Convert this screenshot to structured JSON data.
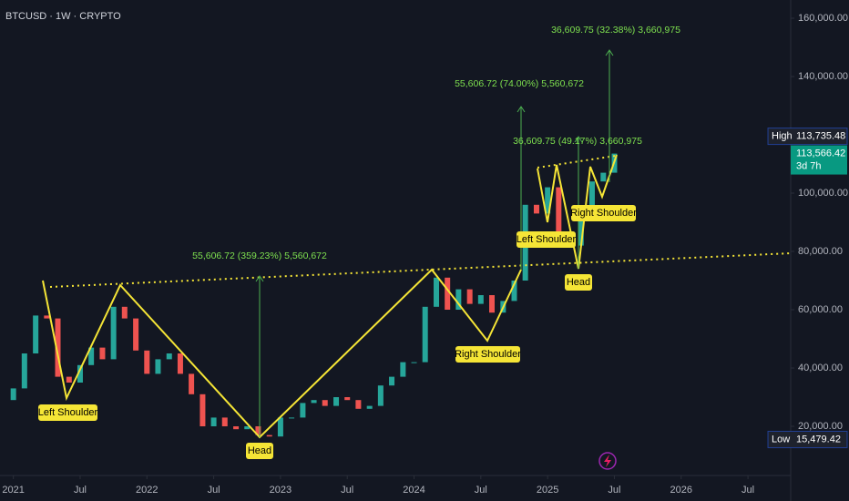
{
  "chart_data": {
    "type": "candlestick",
    "title": "BTCUSD · 1W · CRYPTO",
    "x": [
      2021.0,
      2021.083,
      2021.167,
      2021.25,
      2021.333,
      2021.417,
      2021.5,
      2021.583,
      2021.667,
      2021.75,
      2021.833,
      2021.917,
      2022.0,
      2022.083,
      2022.167,
      2022.25,
      2022.333,
      2022.417,
      2022.5,
      2022.583,
      2022.667,
      2022.75,
      2022.833,
      2022.917,
      2023.0,
      2023.083,
      2023.167,
      2023.25,
      2023.333,
      2023.417,
      2023.5,
      2023.583,
      2023.667,
      2023.75,
      2023.833,
      2023.917,
      2024.0,
      2024.083,
      2024.167,
      2024.25,
      2024.333,
      2024.417,
      2024.5,
      2024.583,
      2024.667,
      2024.75,
      2024.833,
      2024.917,
      2025.0,
      2025.083,
      2025.167,
      2025.25,
      2025.333,
      2025.417,
      2025.5
    ],
    "open": [
      29000,
      33000,
      45000,
      58000,
      57000,
      37000,
      35000,
      41000,
      47000,
      43000,
      61000,
      57000,
      46000,
      38000,
      43000,
      45000,
      38000,
      31000,
      20000,
      23000,
      20000,
      19000,
      20000,
      17000,
      16500,
      23000,
      23000,
      28000,
      29000,
      27000,
      30000,
      29000,
      26000,
      27000,
      34000,
      37000,
      42000,
      42000,
      61000,
      71000,
      60000,
      67000,
      62000,
      65000,
      59000,
      63000,
      70000,
      96000,
      93000,
      102000,
      84000,
      82000,
      94000,
      104000,
      107000
    ],
    "close": [
      33000,
      45000,
      58000,
      57000,
      37000,
      35000,
      41000,
      47000,
      43000,
      61000,
      57000,
      46000,
      38000,
      43000,
      45000,
      38000,
      31000,
      20000,
      23000,
      20000,
      19000,
      20000,
      17000,
      16500,
      23000,
      23000,
      28000,
      29000,
      27000,
      30000,
      29000,
      26000,
      27000,
      34000,
      37000,
      42000,
      42000,
      61000,
      71000,
      60000,
      67000,
      62000,
      65000,
      59000,
      63000,
      70000,
      96000,
      93000,
      102000,
      84000,
      82000,
      94000,
      104000,
      107000,
      113566.42
    ],
    "up_color": "#26a69a",
    "down_color": "#ef5350",
    "xlim": [
      2020.9,
      2026.82
    ],
    "xticks": [
      {
        "value": 2021,
        "label": "2021"
      },
      {
        "value": 2021.5,
        "label": "Jul"
      },
      {
        "value": 2022,
        "label": "2022"
      },
      {
        "value": 2022.5,
        "label": "Jul"
      },
      {
        "value": 2023,
        "label": "2023"
      },
      {
        "value": 2023.5,
        "label": "Jul"
      },
      {
        "value": 2024,
        "label": "2024"
      },
      {
        "value": 2024.5,
        "label": "Jul"
      },
      {
        "value": 2025,
        "label": "2025"
      },
      {
        "value": 2025.5,
        "label": "Jul"
      },
      {
        "value": 2026,
        "label": "2026"
      },
      {
        "value": 2026.5,
        "label": "Jul"
      }
    ],
    "ylim": [
      625,
      166250
    ],
    "yticks": [
      {
        "value": 20000,
        "label": "20,000.00"
      },
      {
        "value": 40000,
        "label": "40,000.00"
      },
      {
        "value": 60000,
        "label": "60,000.00"
      },
      {
        "value": 80000,
        "label": "80,000.00"
      },
      {
        "value": 100000,
        "label": "100,000.00"
      },
      {
        "value": 140000,
        "label": "140,000.00"
      },
      {
        "value": 160000,
        "label": "160,000.00"
      }
    ],
    "high": {
      "name": "High",
      "value": 113735.48,
      "label": "113,735.48"
    },
    "last": {
      "value": 113566.42,
      "label": "113,566.42",
      "countdown": "3d 7h"
    },
    "low": {
      "name": "Low",
      "value": 15479.42,
      "label": "15,479.42"
    },
    "pattern_labels": [
      "Left Shoulder",
      "Head",
      "Right Shoulder",
      "Left Shoulder",
      "Head",
      "Right Shoulder"
    ],
    "measurements": [
      "55,606.72 (359.23%) 5,560,672",
      "55,606.72 (74.00%) 5,560,672",
      "36,609.75 (49.17%) 3,660,975",
      "36,609.75 (32.38%) 3,660,975"
    ]
  }
}
